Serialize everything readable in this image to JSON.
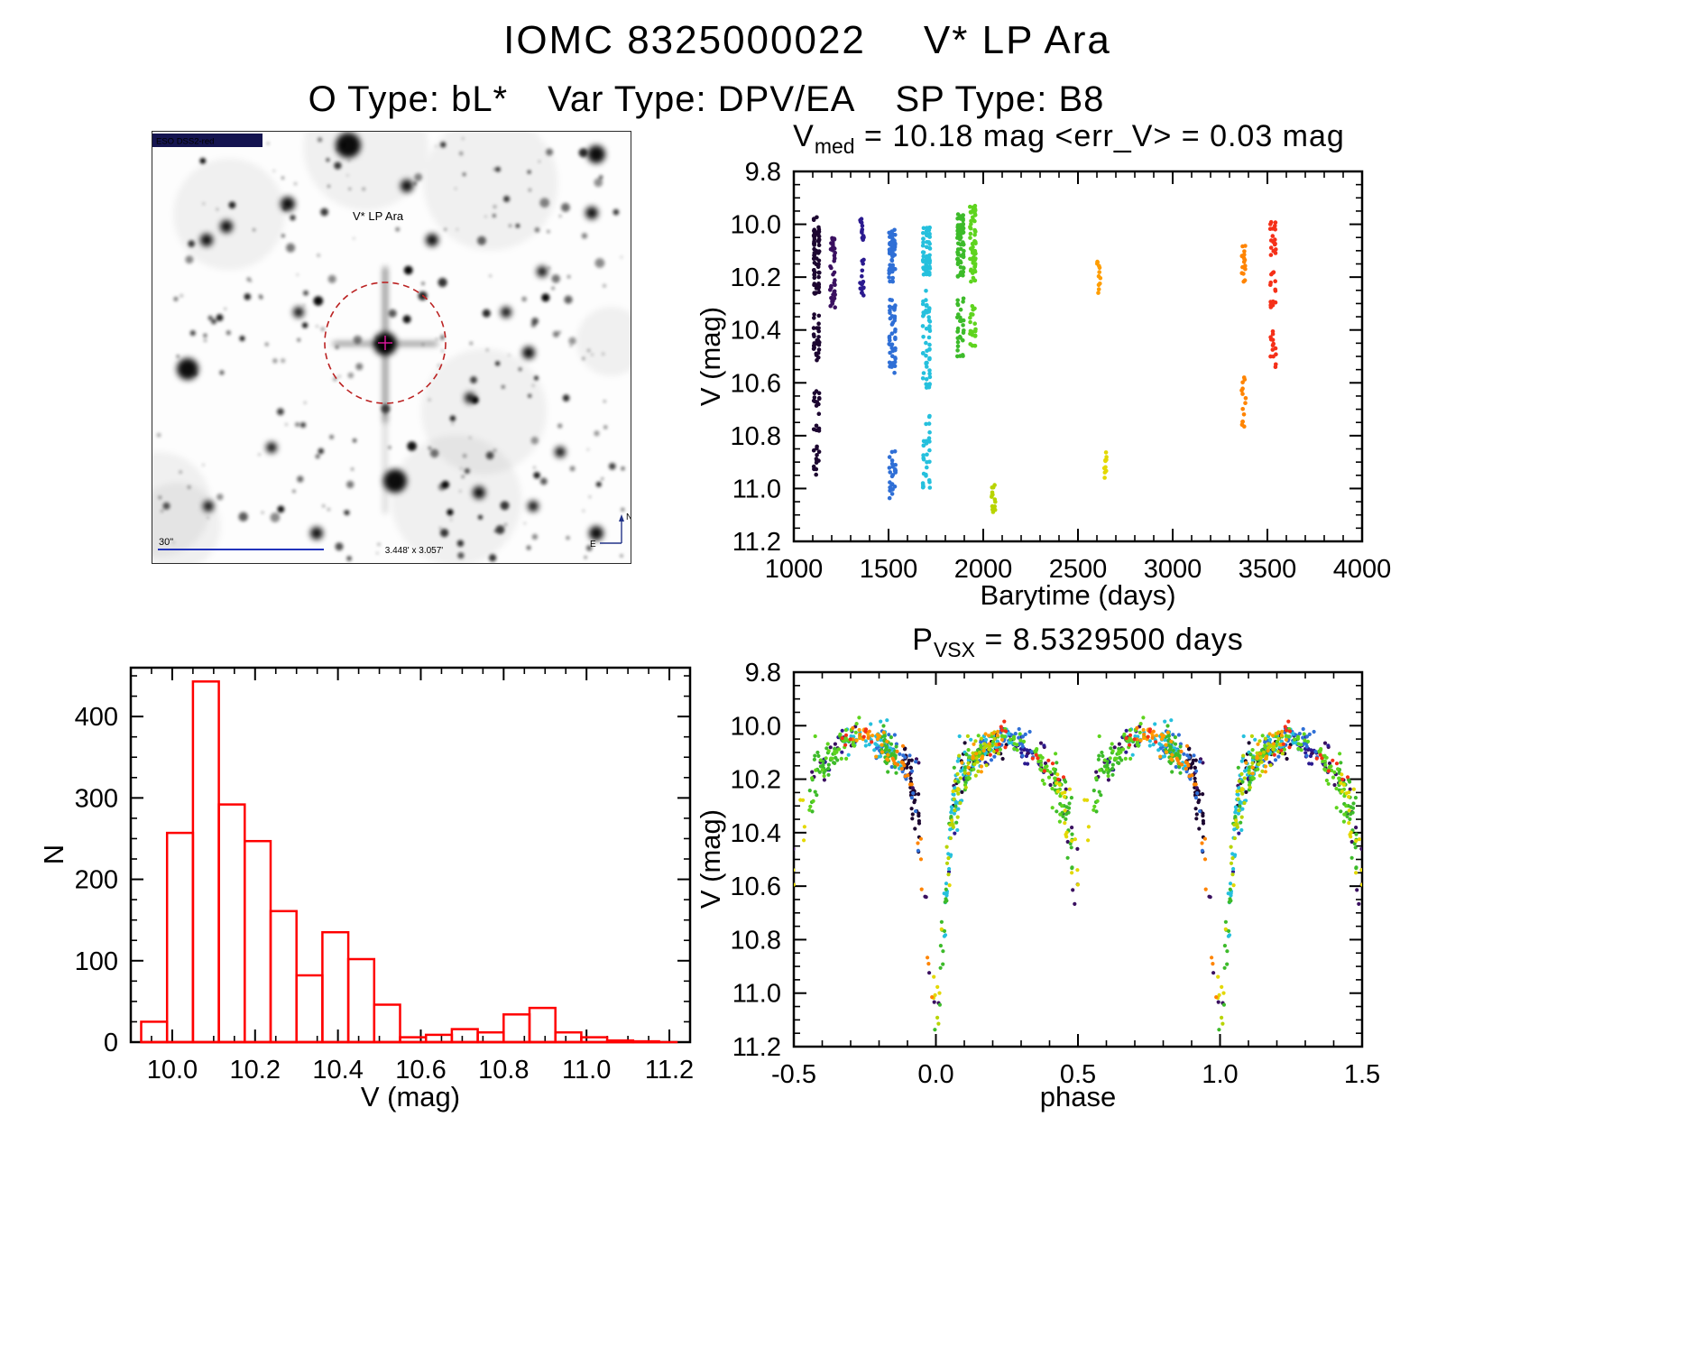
{
  "page": {
    "title_id": "IOMC 8325000022",
    "title_star": "V* LP Ara",
    "subtitle_otype": "O Type: bL*",
    "subtitle_vartype": "Var Type: DPV/EA",
    "subtitle_sptype": "SP Type: B8"
  },
  "finder_chart": {
    "survey_label": "ESO DSS2-red",
    "star_label": "V* LP Ara",
    "scale_bar_label": "30\"",
    "fov_label": "3.448' x 3.057'",
    "compass_north": "N",
    "compass_east": "E",
    "marker_color": "#bb2222",
    "annotation_color": "#2233bb",
    "seed": 83250
  },
  "chart_data": [
    {
      "id": "lightcurve-time",
      "type": "scatter",
      "title": "V_med = 10.18 mag <err_V> = 0.03 mag",
      "title_main": "V",
      "title_sub": "med",
      "title_rest": " = 10.18 mag <err_V> = 0.03 mag",
      "xlabel": "Barytime (days)",
      "ylabel": "V (mag)",
      "xlim": [
        1000,
        4000
      ],
      "ylim": [
        9.8,
        11.2
      ],
      "xtick_vals": [
        1000,
        1500,
        2000,
        2500,
        3000,
        3500,
        4000
      ],
      "xtick_labels": [
        "1000",
        "1500",
        "2000",
        "2500",
        "3000",
        "3500",
        "4000"
      ],
      "ytick_vals": [
        9.8,
        10.0,
        10.2,
        10.4,
        10.6,
        10.8,
        11.0,
        11.2
      ],
      "ytick_labels": [
        "9.8",
        "10.0",
        "10.2",
        "10.4",
        "10.6",
        "10.8",
        "11.0",
        "11.2"
      ],
      "xminor": 100,
      "yminor": 0.05,
      "clusters": [
        {
          "x": 1120,
          "spread": 12,
          "color": "#1c0630",
          "segments": [
            {
              "y0": 9.97,
              "y1": 10.27,
              "n": 70
            },
            {
              "y0": 10.33,
              "y1": 10.52,
              "n": 28
            },
            {
              "y0": 10.62,
              "y1": 10.72,
              "n": 12
            },
            {
              "y0": 10.76,
              "y1": 10.97,
              "n": 20
            }
          ]
        },
        {
          "x": 1205,
          "spread": 10,
          "color": "#3a1060",
          "segments": [
            {
              "y0": 10.05,
              "y1": 10.32,
              "n": 40
            }
          ]
        },
        {
          "x": 1360,
          "spread": 8,
          "color": "#2b1a8f",
          "segments": [
            {
              "y0": 9.98,
              "y1": 10.06,
              "n": 14
            },
            {
              "y0": 10.13,
              "y1": 10.27,
              "n": 18
            }
          ]
        },
        {
          "x": 1520,
          "spread": 14,
          "color": "#2f6fd6",
          "segments": [
            {
              "y0": 10.02,
              "y1": 10.22,
              "n": 60
            },
            {
              "y0": 10.27,
              "y1": 10.58,
              "n": 45
            },
            {
              "y0": 10.85,
              "y1": 11.05,
              "n": 25
            }
          ]
        },
        {
          "x": 1700,
          "spread": 16,
          "color": "#25c0dd",
          "segments": [
            {
              "y0": 10.01,
              "y1": 10.2,
              "n": 60
            },
            {
              "y0": 10.25,
              "y1": 10.62,
              "n": 50
            },
            {
              "y0": 10.72,
              "y1": 11.0,
              "n": 30
            }
          ]
        },
        {
          "x": 1880,
          "spread": 14,
          "color": "#3dbb2a",
          "segments": [
            {
              "y0": 9.96,
              "y1": 10.2,
              "n": 65
            },
            {
              "y0": 10.28,
              "y1": 10.5,
              "n": 30
            }
          ]
        },
        {
          "x": 1945,
          "spread": 12,
          "color": "#5ed41e",
          "segments": [
            {
              "y0": 9.93,
              "y1": 10.22,
              "n": 60
            },
            {
              "y0": 10.3,
              "y1": 10.48,
              "n": 20
            }
          ]
        },
        {
          "x": 2055,
          "spread": 8,
          "color": "#b8d400",
          "segments": [
            {
              "y0": 10.98,
              "y1": 11.1,
              "n": 14
            }
          ]
        },
        {
          "x": 2610,
          "spread": 6,
          "color": "#ff9d00",
          "segments": [
            {
              "y0": 10.14,
              "y1": 10.26,
              "n": 12
            }
          ]
        },
        {
          "x": 2645,
          "spread": 5,
          "color": "#e3d800",
          "segments": [
            {
              "y0": 10.86,
              "y1": 10.97,
              "n": 10
            }
          ]
        },
        {
          "x": 3375,
          "spread": 8,
          "color": "#ff8400",
          "segments": [
            {
              "y0": 10.08,
              "y1": 10.22,
              "n": 16
            },
            {
              "y0": 10.58,
              "y1": 10.77,
              "n": 14
            }
          ]
        },
        {
          "x": 3530,
          "spread": 12,
          "color": "#f53018",
          "segments": [
            {
              "y0": 9.98,
              "y1": 10.12,
              "n": 18
            },
            {
              "y0": 10.18,
              "y1": 10.32,
              "n": 16
            },
            {
              "y0": 10.38,
              "y1": 10.57,
              "n": 14
            }
          ]
        }
      ]
    },
    {
      "id": "histogram",
      "type": "bar",
      "xlabel": "V (mag)",
      "ylabel": "N",
      "xlim": [
        9.9,
        11.25
      ],
      "ylim": [
        0,
        460
      ],
      "xtick_vals": [
        10.0,
        10.2,
        10.4,
        10.6,
        10.8,
        11.0,
        11.2
      ],
      "xtick_labels": [
        "10.0",
        "10.2",
        "10.4",
        "10.6",
        "10.8",
        "11.0",
        "11.2"
      ],
      "ytick_vals": [
        0,
        100,
        200,
        300,
        400
      ],
      "ytick_labels": [
        "0",
        "100",
        "200",
        "300",
        "400"
      ],
      "xminor": 0.05,
      "yminor": 25,
      "bin_start": 9.925,
      "bin_width": 0.0625,
      "baseline_end": 11.22,
      "counts": [
        25,
        257,
        443,
        292,
        247,
        161,
        82,
        135,
        102,
        46,
        6,
        9,
        16,
        12,
        34,
        42,
        12,
        6,
        2,
        1
      ],
      "bar_color": "#ff0000"
    },
    {
      "id": "lightcurve-phase",
      "type": "scatter",
      "title": "P_VSX = 8.5329500 days",
      "title_main": "P",
      "title_sub": "VSX",
      "title_rest": " = 8.5329500 days",
      "xlabel": "phase",
      "ylabel": "V (mag)",
      "xlim": [
        -0.5,
        1.5
      ],
      "ylim": [
        9.8,
        11.2
      ],
      "xtick_vals": [
        -0.5,
        0.0,
        0.5,
        1.0,
        1.5
      ],
      "xtick_labels": [
        "-0.5",
        "0.0",
        "0.5",
        "1.0",
        "1.5"
      ],
      "ytick_vals": [
        9.8,
        10.0,
        10.2,
        10.4,
        10.6,
        10.8,
        11.0,
        11.2
      ],
      "ytick_labels": [
        "9.8",
        "10.0",
        "10.2",
        "10.4",
        "10.6",
        "10.8",
        "11.0",
        "11.2"
      ],
      "xminor": 0.1,
      "yminor": 0.05,
      "period_days": 8.53295,
      "n_points": 820,
      "model_curve": [
        [
          0.0,
          11.08
        ],
        [
          0.012,
          10.97
        ],
        [
          0.025,
          10.82
        ],
        [
          0.04,
          10.6
        ],
        [
          0.055,
          10.38
        ],
        [
          0.07,
          10.25
        ],
        [
          0.09,
          10.18
        ],
        [
          0.12,
          10.14
        ],
        [
          0.16,
          10.1
        ],
        [
          0.2,
          10.07
        ],
        [
          0.25,
          10.04
        ],
        [
          0.3,
          10.06
        ],
        [
          0.34,
          10.1
        ],
        [
          0.38,
          10.14
        ],
        [
          0.42,
          10.2
        ],
        [
          0.45,
          10.28
        ],
        [
          0.47,
          10.38
        ],
        [
          0.49,
          10.5
        ],
        [
          0.5,
          10.56
        ],
        [
          0.51,
          10.5
        ],
        [
          0.53,
          10.38
        ],
        [
          0.55,
          10.28
        ],
        [
          0.58,
          10.18
        ],
        [
          0.62,
          10.12
        ],
        [
          0.66,
          10.08
        ],
        [
          0.7,
          10.05
        ],
        [
          0.75,
          10.03
        ],
        [
          0.8,
          10.06
        ],
        [
          0.84,
          10.1
        ],
        [
          0.88,
          10.14
        ],
        [
          0.91,
          10.2
        ],
        [
          0.93,
          10.28
        ],
        [
          0.945,
          10.4
        ],
        [
          0.96,
          10.6
        ],
        [
          0.975,
          10.82
        ],
        [
          0.988,
          10.97
        ],
        [
          1.0,
          11.08
        ]
      ],
      "palette": [
        {
          "color": "#1c0630",
          "weight": 0.1
        },
        {
          "color": "#3a1060",
          "weight": 0.06
        },
        {
          "color": "#2b1a8f",
          "weight": 0.05
        },
        {
          "color": "#2f6fd6",
          "weight": 0.1
        },
        {
          "color": "#25c0dd",
          "weight": 0.16
        },
        {
          "color": "#3dbb2a",
          "weight": 0.18
        },
        {
          "color": "#5ed41e",
          "weight": 0.14
        },
        {
          "color": "#b8d400",
          "weight": 0.06
        },
        {
          "color": "#e3d800",
          "weight": 0.04
        },
        {
          "color": "#ff9d00",
          "weight": 0.05
        },
        {
          "color": "#ff8400",
          "weight": 0.03
        },
        {
          "color": "#f53018",
          "weight": 0.03
        }
      ]
    }
  ]
}
